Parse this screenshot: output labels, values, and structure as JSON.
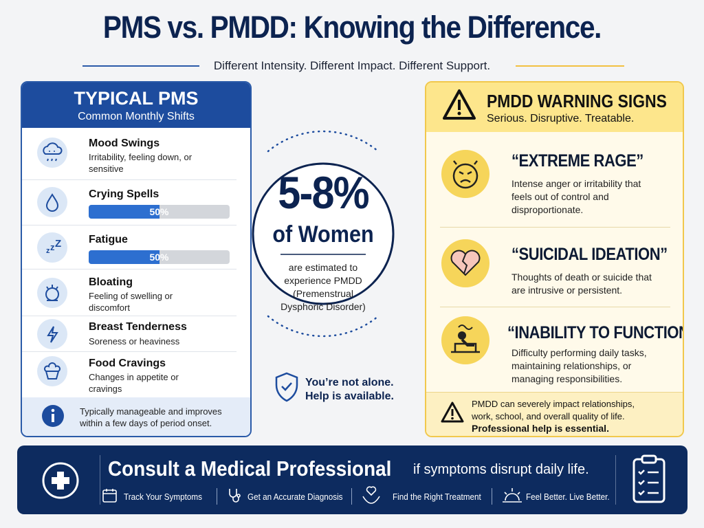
{
  "header": {
    "title": "PMS vs. PMDD: Knowing the Difference.",
    "subtitle": "Different Intensity. Different Impact. Different Support."
  },
  "pms": {
    "title": "TYPICAL PMS",
    "subtitle": "Common Monthly Shifts",
    "items": [
      {
        "name": "Mood Swings",
        "description": "Irritability, feeling down, or sensitive"
      },
      {
        "name": "Crying Spells",
        "progress": 50,
        "progress_label": "50%"
      },
      {
        "name": "Fatigue",
        "progress": 50,
        "progress_label": "50%"
      },
      {
        "name": "Bloating",
        "description": "Feeling of swelling or discomfort"
      },
      {
        "name": "Breast Tenderness",
        "description": "Soreness or heaviness"
      },
      {
        "name": "Food Cravings",
        "description": "Changes in appetite or cravings"
      }
    ],
    "note": "Typically manageable and improves within a few days of period onset."
  },
  "center": {
    "stat": "5-8%",
    "stat_label": "of Women",
    "description": "are estimated to experience PMDD (Premenstrual Dysphoric Disorder)",
    "reassurance": "You’re not alone. Help is available."
  },
  "pmdd": {
    "title": "PMDD WARNING SIGNS",
    "subtitle": "Serious. Disruptive. Treatable.",
    "items": [
      {
        "name": "“EXTREME RAGE”",
        "description": "Intense anger or irritability that feels out of control and disproportionate."
      },
      {
        "name": "“SUICIDAL IDEATION”",
        "description": "Thoughts of death or suicide that are intrusive or persistent."
      },
      {
        "name": "“INABILITY TO FUNCTION”",
        "description": "Difficulty performing daily tasks, maintaining relationships, or managing responsibilities."
      }
    ],
    "note": "PMDD can severely impact relationships, work, school, and overall quality of life.",
    "note_emphasis": "Professional help is essential."
  },
  "footer": {
    "title": "Consult a Medical Professional",
    "subtitle": "if symptoms disrupt daily life.",
    "steps": [
      "Track Your Symptoms",
      "Get an Accurate Diagnosis",
      "Find the Right Treatment",
      "Feel Better. Live Better."
    ]
  }
}
